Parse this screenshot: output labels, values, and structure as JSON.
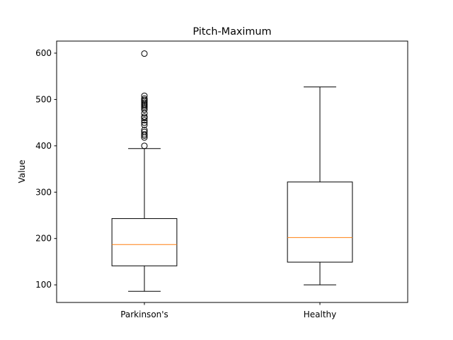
{
  "chart_data": {
    "type": "boxplot",
    "title": "Pitch-Maximum",
    "xlabel": "",
    "ylabel": "Value",
    "ylim": [
      62,
      626
    ],
    "yticks": [
      100,
      200,
      300,
      400,
      500,
      600
    ],
    "categories": [
      "Parkinson's",
      "Healthy"
    ],
    "boxes": [
      {
        "category": "Parkinson's",
        "whisker_low": 86,
        "q1": 141,
        "median": 187,
        "q3": 243,
        "whisker_high": 394,
        "outliers": [
          400,
          418,
          422,
          425,
          430,
          434,
          445,
          450,
          455,
          460,
          463,
          470,
          478,
          482,
          485,
          488,
          490,
          493,
          496,
          499,
          502,
          508,
          599
        ]
      },
      {
        "category": "Healthy",
        "whisker_low": 100,
        "q1": 149,
        "median": 202,
        "q3": 322,
        "whisker_high": 527,
        "outliers": []
      }
    ],
    "colors": {
      "box": "#000000",
      "median": "#ff7f0e",
      "outlier": "#000000"
    },
    "grid": false,
    "legend": "none"
  }
}
